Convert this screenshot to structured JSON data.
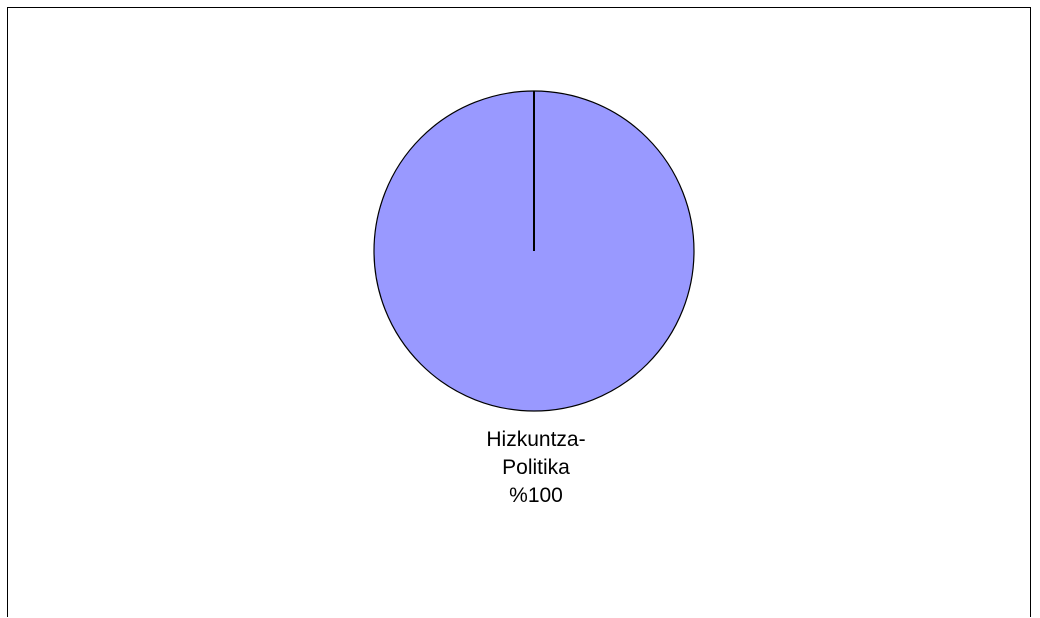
{
  "chart_data": {
    "type": "pie",
    "title": "",
    "slices": [
      {
        "label_lines": [
          "Hizkuntza-",
          "Politika"
        ],
        "value_label": "%100",
        "percent": 100,
        "color": "#9999ff"
      }
    ],
    "legend": "none",
    "outline_color": "#000000"
  }
}
